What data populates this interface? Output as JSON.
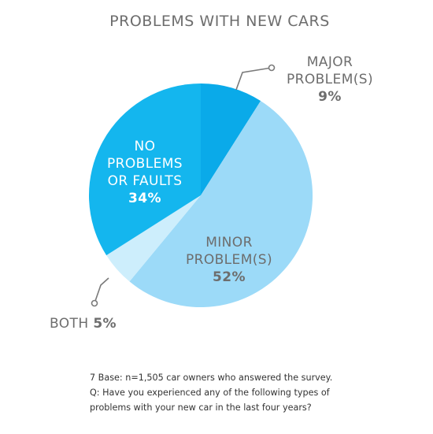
{
  "chart_data": {
    "type": "pie",
    "title": "PROBLEMS WITH NEW CARS",
    "slices": [
      {
        "label_lines": [
          "MAJOR",
          "PROBLEM(S)"
        ],
        "value": 9,
        "value_label": "9%",
        "color": "#0aaae9",
        "label_color": "#6d6d6d"
      },
      {
        "label_lines": [
          "MINOR",
          "PROBLEM(S)"
        ],
        "value": 52,
        "value_label": "52%",
        "color": "#9cdaf8",
        "label_color": "#6d6d6d"
      },
      {
        "label_lines": [
          "BOTH"
        ],
        "value": 5,
        "value_label": "5%",
        "color": "#cdeefc",
        "label_color": "#6d6d6d"
      },
      {
        "label_lines": [
          "NO",
          "PROBLEMS",
          "OR FAULTS"
        ],
        "value": 34,
        "value_label": "34%",
        "color": "#14b6ee",
        "label_color": "#ffffff"
      }
    ]
  },
  "footnote": {
    "line1": "7  Base: n=1,505 car owners who answered the survey.",
    "line2": "Q: Have you experienced any of the following types of",
    "line3": "problems with your new car in the last four years?"
  }
}
